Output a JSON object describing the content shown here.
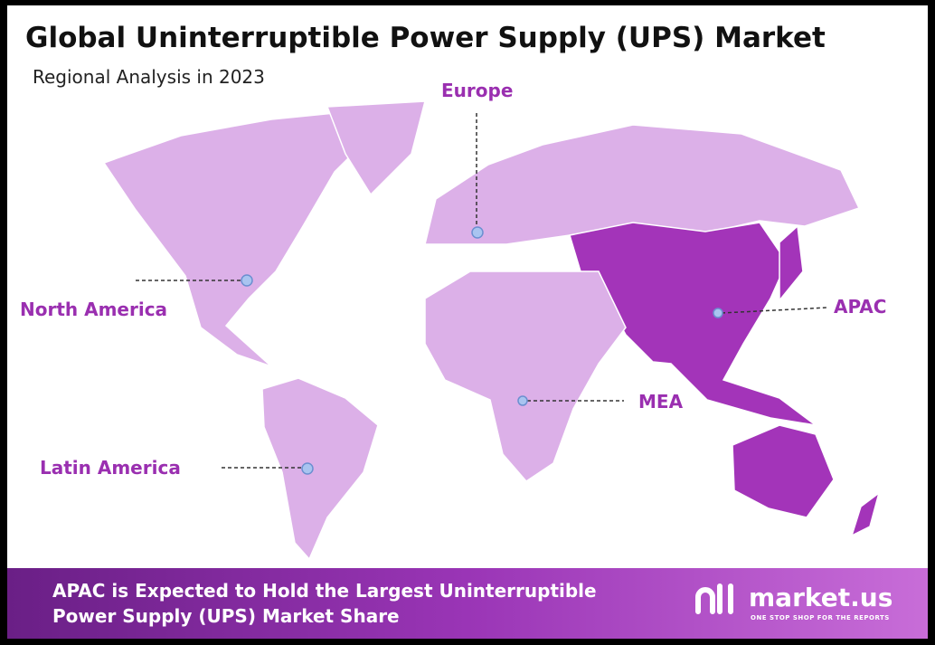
{
  "header": {
    "title": "Global Uninterruptible Power Supply (UPS) Market",
    "subtitle": "Regional Analysis in 2023"
  },
  "regions": {
    "europe": "Europe",
    "north_america": "North America",
    "apac": "APAC",
    "mea": "MEA",
    "latin_america": "Latin America"
  },
  "footer": {
    "lines": [
      "APAC is Expected to Hold the Largest Uninterruptible",
      "Power Supply (UPS) Market Share"
    ],
    "brand": "market.us",
    "tagline": "ONE STOP SHOP FOR THE REPORTS"
  }
}
